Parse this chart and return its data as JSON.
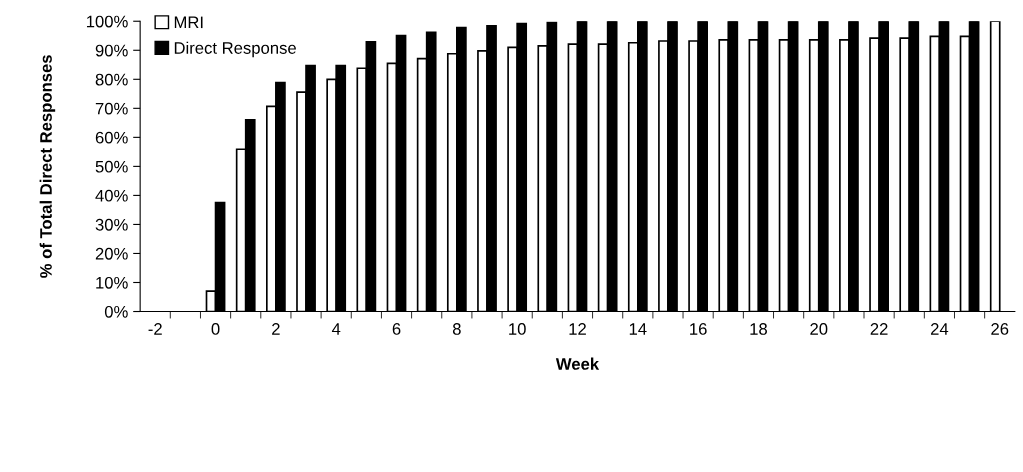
{
  "chart_data": {
    "type": "bar",
    "xlabel": "Week",
    "ylabel": "% of Total Direct Responses",
    "categories": [
      "-2",
      null,
      "0",
      null,
      "2",
      null,
      "4",
      null,
      "6",
      null,
      "8",
      null,
      "10",
      null,
      "12",
      null,
      "14",
      null,
      "16",
      null,
      "18",
      null,
      "20",
      null,
      "22",
      null,
      "24",
      null,
      "26"
    ],
    "series": [
      {
        "name": "MRI",
        "color": "#ffffff",
        "values": [
          null,
          null,
          7,
          55.9,
          70.7,
          75.6,
          80.0,
          83.8,
          85.5,
          87.1,
          88.8,
          89.8,
          91.0,
          91.5,
          92.1,
          92.1,
          92.6,
          93.2,
          93.2,
          93.6,
          93.6,
          93.6,
          93.6,
          93.6,
          94.2,
          94.2,
          94.8,
          94.8,
          100
        ]
      },
      {
        "name": "Direct Response",
        "color": "#000000",
        "values": [
          null,
          null,
          37.5,
          66.0,
          78.9,
          84.7,
          84.7,
          92.9,
          95.1,
          96.2,
          97.8,
          98.4,
          99.2,
          99.5,
          100,
          100,
          100,
          100,
          100,
          100,
          100,
          100,
          100,
          100,
          100,
          100,
          100,
          100,
          null
        ]
      }
    ],
    "ylim": [
      0,
      100
    ],
    "yticks": [
      {
        "value": 0,
        "label": "0%"
      },
      {
        "value": 10,
        "label": "10%"
      },
      {
        "value": 20,
        "label": "20%"
      },
      {
        "value": 30,
        "label": "30%"
      },
      {
        "value": 40,
        "label": "40%"
      },
      {
        "value": 50,
        "label": "50%"
      },
      {
        "value": 60,
        "label": "60%"
      },
      {
        "value": 70,
        "label": "70%"
      },
      {
        "value": 80,
        "label": "80%"
      },
      {
        "value": 90,
        "label": "90%"
      },
      {
        "value": 100,
        "label": "100%"
      }
    ],
    "grid": false,
    "legend": "top left"
  }
}
